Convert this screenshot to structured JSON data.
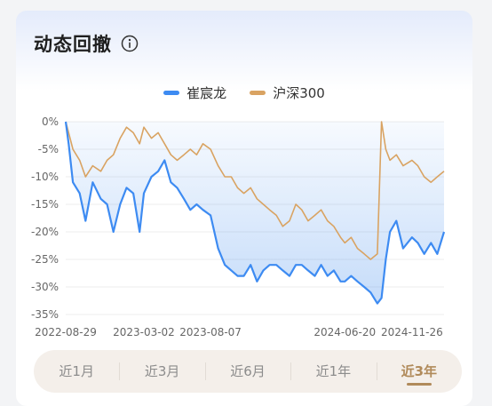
{
  "card": {
    "title": "动态回撤",
    "info_icon": "info-circle-icon"
  },
  "tabs": [
    {
      "label": "近1月",
      "active": false
    },
    {
      "label": "近3月",
      "active": false
    },
    {
      "label": "近6月",
      "active": false
    },
    {
      "label": "近1年",
      "active": false
    },
    {
      "label": "近3年",
      "active": true
    }
  ],
  "chart_data": {
    "type": "line",
    "title": "",
    "xlabel": "",
    "ylabel": "",
    "ylim": [
      -35,
      0
    ],
    "yticks": [
      "0%",
      "-5%",
      "-10%",
      "-15%",
      "-20%",
      "-25%",
      "-30%",
      "-35%"
    ],
    "xticks": [
      "2022-08-29",
      "2023-03-02",
      "2023-08-07",
      "2024-06-20",
      "2024-11-26"
    ],
    "grid": true,
    "legend_position": "top-center",
    "series": [
      {
        "name": "崔宸龙",
        "color": "#3d8bf2",
        "fill": true,
        "x": [
          "2022-08-29",
          "2022-09-05",
          "2022-09-15",
          "2022-10-01",
          "2022-10-15",
          "2022-11-01",
          "2022-11-20",
          "2022-12-05",
          "2022-12-20",
          "2023-01-05",
          "2023-01-20",
          "2023-02-05",
          "2023-02-20",
          "2023-03-02",
          "2023-03-20",
          "2023-04-05",
          "2023-04-20",
          "2023-05-05",
          "2023-05-20",
          "2023-06-05",
          "2023-06-20",
          "2023-07-05",
          "2023-07-20",
          "2023-08-07",
          "2023-08-25",
          "2023-09-10",
          "2023-09-25",
          "2023-10-10",
          "2023-10-25",
          "2023-11-10",
          "2023-11-25",
          "2023-12-10",
          "2023-12-25",
          "2024-01-10",
          "2024-01-25",
          "2024-02-10",
          "2024-02-25",
          "2024-03-10",
          "2024-03-25",
          "2024-04-10",
          "2024-04-25",
          "2024-05-10",
          "2024-05-25",
          "2024-06-10",
          "2024-06-20",
          "2024-07-05",
          "2024-07-20",
          "2024-08-05",
          "2024-08-20",
          "2024-09-05",
          "2024-09-15",
          "2024-09-25",
          "2024-10-05",
          "2024-10-20",
          "2024-11-05",
          "2024-11-26",
          "2024-12-10",
          "2024-12-25",
          "2025-01-10",
          "2025-01-25",
          "2025-02-10"
        ],
        "values": [
          0,
          -4,
          -11,
          -13,
          -18,
          -11,
          -14,
          -15,
          -20,
          -15,
          -12,
          -13,
          -20,
          -13,
          -10,
          -9,
          -7,
          -11,
          -12,
          -14,
          -16,
          -15,
          -16,
          -17,
          -23,
          -26,
          -27,
          -28,
          -28,
          -26,
          -29,
          -27,
          -26,
          -26,
          -27,
          -28,
          -26,
          -26,
          -27,
          -28,
          -26,
          -28,
          -27,
          -29,
          -29,
          -28,
          -29,
          -30,
          -31,
          -33,
          -32,
          -25,
          -20,
          -18,
          -23,
          -21,
          -22,
          -24,
          -22,
          -24,
          -20
        ]
      },
      {
        "name": "沪深300",
        "color": "#d9a362",
        "fill": false,
        "x": [
          "2022-08-29",
          "2022-09-05",
          "2022-09-15",
          "2022-10-01",
          "2022-10-15",
          "2022-11-01",
          "2022-11-20",
          "2022-12-05",
          "2022-12-20",
          "2023-01-05",
          "2023-01-20",
          "2023-02-05",
          "2023-02-20",
          "2023-03-02",
          "2023-03-20",
          "2023-04-05",
          "2023-04-20",
          "2023-05-05",
          "2023-05-20",
          "2023-06-05",
          "2023-06-20",
          "2023-07-05",
          "2023-07-20",
          "2023-08-07",
          "2023-08-25",
          "2023-09-10",
          "2023-09-25",
          "2023-10-10",
          "2023-10-25",
          "2023-11-10",
          "2023-11-25",
          "2023-12-10",
          "2023-12-25",
          "2024-01-10",
          "2024-01-25",
          "2024-02-10",
          "2024-02-25",
          "2024-03-10",
          "2024-03-25",
          "2024-04-10",
          "2024-04-25",
          "2024-05-10",
          "2024-05-25",
          "2024-06-10",
          "2024-06-20",
          "2024-07-05",
          "2024-07-20",
          "2024-08-05",
          "2024-08-20",
          "2024-09-05",
          "2024-09-15",
          "2024-09-25",
          "2024-10-05",
          "2024-10-20",
          "2024-11-05",
          "2024-11-26",
          "2024-12-10",
          "2024-12-25",
          "2025-01-10",
          "2025-01-25",
          "2025-02-10"
        ],
        "values": [
          0,
          -2,
          -5,
          -7,
          -10,
          -8,
          -9,
          -7,
          -6,
          -3,
          -1,
          -2,
          -4,
          -1,
          -3,
          -2,
          -4,
          -6,
          -7,
          -6,
          -5,
          -6,
          -4,
          -5,
          -8,
          -10,
          -10,
          -12,
          -13,
          -12,
          -14,
          -15,
          -16,
          -17,
          -19,
          -18,
          -15,
          -16,
          -18,
          -17,
          -16,
          -18,
          -19,
          -21,
          -22,
          -21,
          -23,
          -24,
          -25,
          -24,
          0,
          -5,
          -7,
          -6,
          -8,
          -7,
          -8,
          -10,
          -11,
          -10,
          -9
        ]
      }
    ]
  }
}
